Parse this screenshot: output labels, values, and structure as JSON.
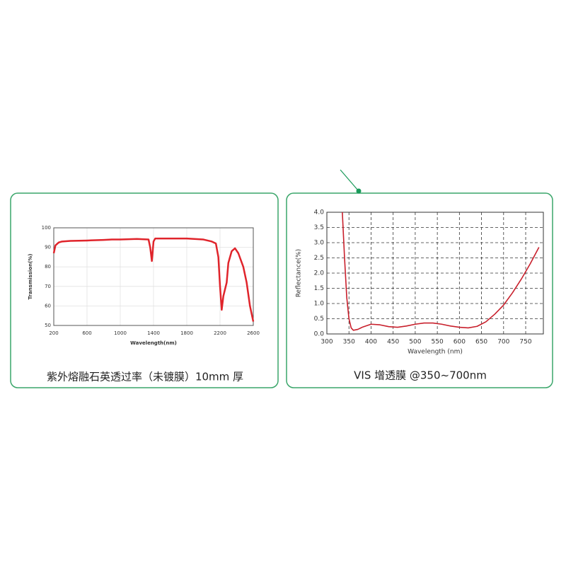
{
  "chart_data": [
    {
      "type": "line",
      "caption": "紫外熔融石英透过率（未镀膜）10mm 厚",
      "xlabel": "Wavelength(nm)",
      "ylabel": "Transmission(%)",
      "x": [
        200,
        220,
        260,
        300,
        400,
        600,
        800,
        900,
        1000,
        1200,
        1340,
        1360,
        1380,
        1400,
        1420,
        1600,
        1800,
        2000,
        2100,
        2150,
        2180,
        2200,
        2220,
        2240,
        2280,
        2300,
        2340,
        2380,
        2420,
        2480,
        2520,
        2560,
        2600
      ],
      "values": [
        87,
        91,
        92.5,
        93,
        93.3,
        93.5,
        93.8,
        94,
        94,
        94.3,
        94,
        90,
        83,
        93,
        94.5,
        94.5,
        94.5,
        94,
        93,
        92,
        85,
        70,
        58,
        65,
        72,
        82,
        88,
        89.5,
        87,
        80,
        72,
        60,
        52
      ],
      "color": "#e0242b",
      "xlim": [
        200,
        2600
      ],
      "xticks": [
        200,
        600,
        1000,
        1400,
        1800,
        2200,
        2600
      ],
      "ylim": [
        50,
        100
      ],
      "yticks": [
        50,
        60,
        70,
        80,
        90,
        100
      ],
      "grid": true,
      "grid_style": "solid"
    },
    {
      "type": "line",
      "caption": "VIS 增透膜 @350~700nm",
      "xlabel": "Wavelength (nm)",
      "ylabel": "Reflectance(%)",
      "x": [
        335,
        340,
        345,
        350,
        355,
        360,
        370,
        380,
        400,
        420,
        440,
        460,
        480,
        500,
        520,
        540,
        560,
        580,
        600,
        620,
        640,
        660,
        680,
        700,
        720,
        740,
        760,
        780
      ],
      "values": [
        4.0,
        2.5,
        1.2,
        0.5,
        0.2,
        0.12,
        0.15,
        0.22,
        0.32,
        0.3,
        0.24,
        0.22,
        0.26,
        0.32,
        0.36,
        0.36,
        0.32,
        0.26,
        0.22,
        0.2,
        0.25,
        0.4,
        0.65,
        0.95,
        1.35,
        1.8,
        2.3,
        2.85
      ],
      "color": "#c8202c",
      "xlim": [
        300,
        790
      ],
      "xticks": [
        300,
        350,
        400,
        450,
        500,
        550,
        600,
        650,
        700,
        750
      ],
      "ylim": [
        0,
        4
      ],
      "yticks": [
        {
          "value": 0,
          "label": "0.0"
        },
        {
          "value": 0.5,
          "label": "0.5"
        },
        {
          "value": 1,
          "label": "1.0"
        },
        {
          "value": 1.5,
          "label": "1.5"
        },
        {
          "value": 2,
          "label": "2.0"
        },
        {
          "value": 2.5,
          "label": "2.5"
        },
        {
          "value": 3,
          "label": "3.0"
        },
        {
          "value": 3.5,
          "label": "3.5"
        },
        {
          "value": 4,
          "label": "4.0"
        }
      ],
      "grid": true,
      "grid_style": "dashed"
    }
  ]
}
